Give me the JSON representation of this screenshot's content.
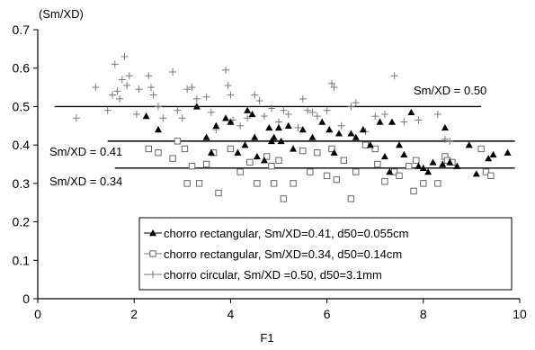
{
  "chart_data": {
    "type": "scatter",
    "xlabel": "F1",
    "ylabel": "(Sm/XD)",
    "xlim": [
      0,
      10
    ],
    "ylim": [
      0,
      0.7
    ],
    "x_ticks": [
      "0",
      "2",
      "4",
      "6",
      "8",
      "10"
    ],
    "y_ticks": [
      "0",
      "0.1",
      "0.2",
      "0.3",
      "0.4",
      "0.5",
      "0.6",
      "0.7"
    ],
    "grid": false,
    "legend_position": "bottom-right",
    "reference_lines": [
      {
        "label": "Sm/XD = 0.50",
        "y": 0.5,
        "x": [
          0.35,
          9.2
        ]
      },
      {
        "label": "Sm/XD = 0.41",
        "y": 0.41,
        "x": [
          1.45,
          9.9
        ]
      },
      {
        "label": "Sm/XD = 0.34",
        "y": 0.34,
        "x": [
          1.6,
          9.9
        ]
      }
    ],
    "series": [
      {
        "name": "chorro rectangular, Sm/XD=0.41, d50=0.055cm",
        "marker": "filled-triangle",
        "points": [
          [
            2.25,
            0.475
          ],
          [
            2.5,
            0.44
          ],
          [
            3.3,
            0.5
          ],
          [
            3.5,
            0.42
          ],
          [
            3.6,
            0.38
          ],
          [
            3.7,
            0.45
          ],
          [
            3.9,
            0.47
          ],
          [
            4.0,
            0.46
          ],
          [
            4.15,
            0.38
          ],
          [
            4.3,
            0.4
          ],
          [
            4.35,
            0.49
          ],
          [
            4.45,
            0.48
          ],
          [
            4.5,
            0.42
          ],
          [
            4.55,
            0.37
          ],
          [
            4.7,
            0.36
          ],
          [
            4.8,
            0.445
          ],
          [
            4.85,
            0.41
          ],
          [
            4.9,
            0.42
          ],
          [
            5.0,
            0.445
          ],
          [
            5.05,
            0.41
          ],
          [
            5.2,
            0.45
          ],
          [
            5.3,
            0.39
          ],
          [
            5.5,
            0.44
          ],
          [
            5.7,
            0.42
          ],
          [
            5.9,
            0.46
          ],
          [
            6.05,
            0.44
          ],
          [
            6.15,
            0.38
          ],
          [
            6.25,
            0.43
          ],
          [
            6.5,
            0.43
          ],
          [
            6.6,
            0.42
          ],
          [
            6.75,
            0.44
          ],
          [
            6.9,
            0.4
          ],
          [
            7.1,
            0.46
          ],
          [
            7.2,
            0.37
          ],
          [
            7.3,
            0.33
          ],
          [
            7.35,
            0.46
          ],
          [
            7.5,
            0.4
          ],
          [
            7.6,
            0.375
          ],
          [
            7.75,
            0.485
          ],
          [
            7.9,
            0.345
          ],
          [
            8.0,
            0.34
          ],
          [
            8.1,
            0.33
          ],
          [
            8.2,
            0.355
          ],
          [
            8.4,
            0.35
          ],
          [
            8.45,
            0.445
          ],
          [
            8.55,
            0.355
          ],
          [
            8.7,
            0.345
          ],
          [
            8.95,
            0.4
          ],
          [
            9.1,
            0.325
          ],
          [
            9.35,
            0.365
          ],
          [
            9.45,
            0.375
          ],
          [
            9.75,
            0.38
          ]
        ]
      },
      {
        "name": "chorro rectangular, Sm/XD=0.34, d50=0.14cm",
        "marker": "open-square",
        "points": [
          [
            2.3,
            0.39
          ],
          [
            2.5,
            0.38
          ],
          [
            2.8,
            0.365
          ],
          [
            2.9,
            0.41
          ],
          [
            3.05,
            0.39
          ],
          [
            3.1,
            0.3
          ],
          [
            3.2,
            0.345
          ],
          [
            3.35,
            0.3
          ],
          [
            3.5,
            0.35
          ],
          [
            3.65,
            0.38
          ],
          [
            3.75,
            0.275
          ],
          [
            4.0,
            0.39
          ],
          [
            4.2,
            0.33
          ],
          [
            4.4,
            0.355
          ],
          [
            4.55,
            0.3
          ],
          [
            4.75,
            0.37
          ],
          [
            4.85,
            0.345
          ],
          [
            4.9,
            0.3
          ],
          [
            5.0,
            0.36
          ],
          [
            5.1,
            0.26
          ],
          [
            5.3,
            0.3
          ],
          [
            5.5,
            0.385
          ],
          [
            5.65,
            0.33
          ],
          [
            5.8,
            0.38
          ],
          [
            6.0,
            0.32
          ],
          [
            6.1,
            0.39
          ],
          [
            6.2,
            0.31
          ],
          [
            6.35,
            0.36
          ],
          [
            6.5,
            0.26
          ],
          [
            6.6,
            0.33
          ],
          [
            6.8,
            0.4
          ],
          [
            7.0,
            0.39
          ],
          [
            7.05,
            0.35
          ],
          [
            7.2,
            0.305
          ],
          [
            7.4,
            0.33
          ],
          [
            7.5,
            0.32
          ],
          [
            7.7,
            0.345
          ],
          [
            7.8,
            0.28
          ],
          [
            7.85,
            0.36
          ],
          [
            8.0,
            0.3
          ],
          [
            8.3,
            0.3
          ],
          [
            8.45,
            0.37
          ],
          [
            8.5,
            0.36
          ],
          [
            8.6,
            0.355
          ],
          [
            9.2,
            0.39
          ],
          [
            9.3,
            0.33
          ],
          [
            9.4,
            0.32
          ]
        ]
      },
      {
        "name": "chorro circular, Sm/XD =0.50, d50=3.1mm",
        "marker": "plus",
        "points": [
          [
            0.8,
            0.47
          ],
          [
            1.2,
            0.55
          ],
          [
            1.45,
            0.49
          ],
          [
            1.55,
            0.53
          ],
          [
            1.6,
            0.61
          ],
          [
            1.65,
            0.54
          ],
          [
            1.7,
            0.52
          ],
          [
            1.75,
            0.57
          ],
          [
            1.8,
            0.63
          ],
          [
            1.85,
            0.555
          ],
          [
            1.9,
            0.58
          ],
          [
            2.05,
            0.48
          ],
          [
            2.1,
            0.545
          ],
          [
            2.3,
            0.58
          ],
          [
            2.35,
            0.55
          ],
          [
            2.4,
            0.53
          ],
          [
            2.5,
            0.5
          ],
          [
            2.6,
            0.47
          ],
          [
            2.8,
            0.59
          ],
          [
            2.9,
            0.49
          ],
          [
            3.0,
            0.47
          ],
          [
            3.1,
            0.545
          ],
          [
            3.2,
            0.55
          ],
          [
            3.3,
            0.52
          ],
          [
            3.5,
            0.525
          ],
          [
            3.6,
            0.485
          ],
          [
            3.7,
            0.44
          ],
          [
            3.9,
            0.595
          ],
          [
            3.95,
            0.555
          ],
          [
            4.0,
            0.53
          ],
          [
            4.05,
            0.465
          ],
          [
            4.2,
            0.45
          ],
          [
            4.35,
            0.47
          ],
          [
            4.5,
            0.53
          ],
          [
            4.6,
            0.515
          ],
          [
            4.7,
            0.475
          ],
          [
            4.85,
            0.495
          ],
          [
            5.0,
            0.46
          ],
          [
            5.1,
            0.49
          ],
          [
            5.2,
            0.48
          ],
          [
            5.4,
            0.445
          ],
          [
            5.5,
            0.52
          ],
          [
            5.6,
            0.49
          ],
          [
            5.7,
            0.485
          ],
          [
            5.8,
            0.475
          ],
          [
            6.0,
            0.49
          ],
          [
            6.1,
            0.56
          ],
          [
            6.15,
            0.55
          ],
          [
            6.3,
            0.45
          ],
          [
            6.5,
            0.5
          ],
          [
            6.6,
            0.51
          ],
          [
            6.8,
            0.435
          ],
          [
            7.0,
            0.475
          ],
          [
            7.2,
            0.48
          ],
          [
            7.4,
            0.58
          ],
          [
            7.6,
            0.46
          ],
          [
            7.9,
            0.465
          ],
          [
            8.3,
            0.48
          ],
          [
            8.45,
            0.415
          ],
          [
            8.55,
            0.41
          ]
        ]
      }
    ]
  }
}
